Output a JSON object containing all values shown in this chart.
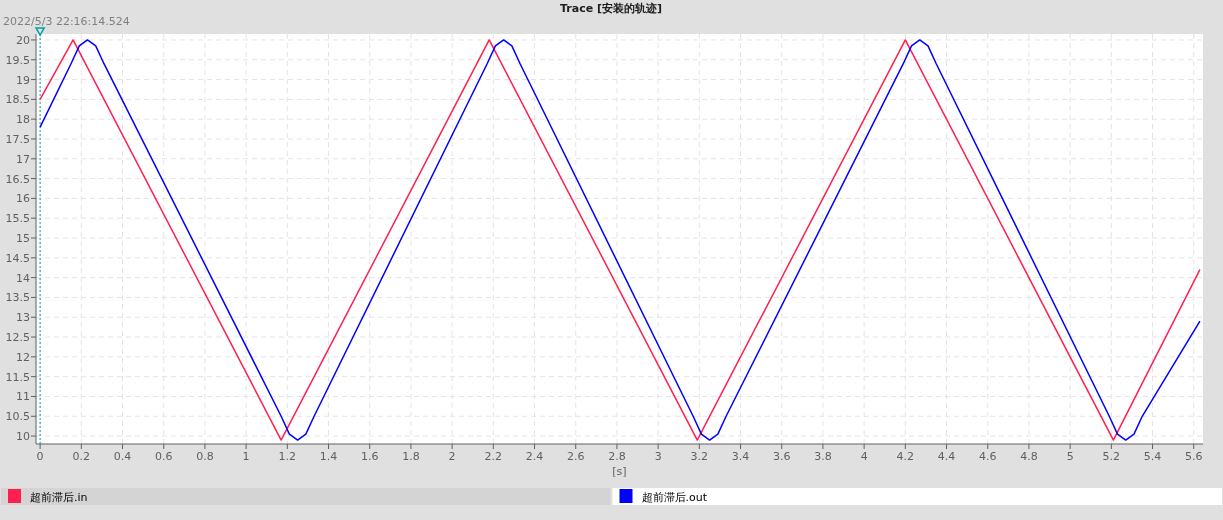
{
  "chart_data": {
    "type": "line",
    "title": "Trace [安装的轨迹]",
    "xlabel": "[s]",
    "annotations": [
      "2022/5/3 22:16:14.524"
    ],
    "xlim": [
      -0.02,
      5.645
    ],
    "ylim": [
      9.8,
      20.15
    ],
    "xticks": [
      0,
      0.2,
      0.4,
      0.6,
      0.8,
      1,
      1.2,
      1.4,
      1.6,
      1.8,
      2,
      2.2,
      2.4,
      2.6,
      2.8,
      3,
      3.2,
      3.4,
      3.6,
      3.8,
      4,
      4.2,
      4.4,
      4.6,
      4.8,
      5,
      5.2,
      5.4,
      5.6
    ],
    "yticks": [
      10,
      10.5,
      11,
      11.5,
      12,
      12.5,
      13,
      13.5,
      14,
      14.5,
      15,
      15.5,
      16,
      16.5,
      17,
      17.5,
      18,
      18.5,
      19,
      19.5,
      20
    ],
    "grid": true,
    "legend": "bottom",
    "line_style": "solid",
    "marker": "none",
    "ref_lines": [
      {
        "axis": "x",
        "value": 0,
        "color": "#00a0a0",
        "line_style": "dotted"
      }
    ],
    "series": [
      {
        "name": "超前滞后.in",
        "color": "#ff2050",
        "x": [
          0,
          0.16,
          1.17,
          2.18,
          3.19,
          4.2,
          5.21,
          5.63
        ],
        "values": [
          18.5,
          20,
          9.9,
          20,
          9.9,
          20,
          9.9,
          14.2
        ]
      },
      {
        "name": "超前滞后.out",
        "color": "#0000ff",
        "x": [
          0,
          0.15,
          0.19,
          0.23,
          0.27,
          0.31,
          1.17,
          1.21,
          1.25,
          1.29,
          1.33,
          2.17,
          2.21,
          2.25,
          2.29,
          2.33,
          3.17,
          3.21,
          3.25,
          3.29,
          3.33,
          4.19,
          4.23,
          4.27,
          4.31,
          4.35,
          5.19,
          5.23,
          5.27,
          5.31,
          5.35,
          5.63
        ],
        "values": [
          17.8,
          19.4,
          19.85,
          20,
          19.85,
          19.4,
          10.5,
          10.05,
          9.9,
          10.05,
          10.5,
          19.4,
          19.85,
          20,
          19.85,
          19.4,
          10.5,
          10.05,
          9.9,
          10.05,
          10.5,
          19.4,
          19.85,
          20,
          19.85,
          19.4,
          10.5,
          10.05,
          9.9,
          10.05,
          10.5,
          12.9
        ]
      }
    ]
  }
}
